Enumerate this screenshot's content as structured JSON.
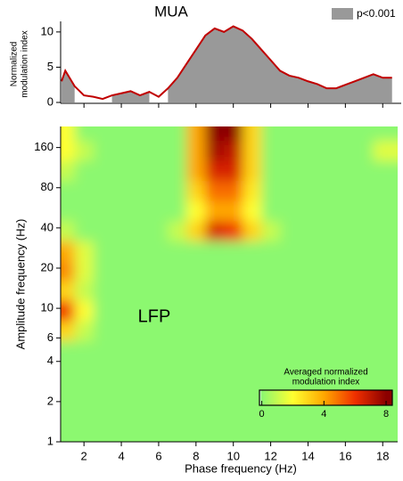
{
  "chart_data": [
    {
      "type": "area_line",
      "title": "MUA",
      "ylabel": [
        "Normalized",
        "modulation index"
      ],
      "x": [
        0.8,
        1,
        1.5,
        2,
        2.5,
        3,
        3.5,
        4,
        4.5,
        5,
        5.5,
        6,
        6.5,
        7,
        7.5,
        8,
        8.5,
        9,
        9.5,
        10,
        10.5,
        11,
        11.5,
        12,
        12.5,
        13,
        13.5,
        14,
        14.5,
        15,
        15.5,
        16,
        16.5,
        17,
        17.5,
        18,
        18.5
      ],
      "series": [
        {
          "name": "p<0.001",
          "color": "#999999",
          "values": [
            3.0,
            4.5,
            2.3,
            null,
            null,
            null,
            1.0,
            1.3,
            1.6,
            1.0,
            1.5,
            null,
            2.0,
            3.5,
            5.5,
            7.5,
            9.5,
            10.5,
            10.0,
            10.8,
            10.2,
            9.0,
            7.5,
            6.0,
            4.5,
            3.8,
            3.5,
            3.0,
            2.6,
            2.0,
            2.0,
            2.5,
            3.0,
            3.5,
            4.0,
            3.5,
            3.5
          ]
        },
        {
          "color": "#c00000",
          "values": [
            3.0,
            4.5,
            2.3,
            1.0,
            0.8,
            0.5,
            1.0,
            1.3,
            1.6,
            1.0,
            1.5,
            0.8,
            2.0,
            3.5,
            5.5,
            7.5,
            9.5,
            10.5,
            10.0,
            10.8,
            10.2,
            9.0,
            7.5,
            6.0,
            4.5,
            3.8,
            3.5,
            3.0,
            2.6,
            2.0,
            2.0,
            2.5,
            3.0,
            3.5,
            4.0,
            3.5,
            3.5
          ]
        }
      ],
      "xlim": [
        0.75,
        18.8
      ],
      "xticks": [
        2,
        4,
        6,
        8,
        10,
        12,
        14,
        16,
        18
      ],
      "ylim": [
        0,
        11.5
      ],
      "yticks": [
        0,
        5,
        10
      ],
      "legend": "upper right"
    },
    {
      "type": "heatmap",
      "annotation": "LFP",
      "xlabel": "Phase frequency (Hz)",
      "ylabel": "Amplitude frequency (Hz)",
      "x": [
        1,
        2,
        3,
        4,
        5,
        6,
        7,
        8,
        9,
        10,
        11,
        12,
        13,
        14,
        15,
        16,
        17,
        18
      ],
      "y": [
        1.2,
        1.7,
        2.4,
        3.4,
        4.8,
        6.8,
        9.6,
        13.6,
        19,
        27,
        38,
        54,
        76,
        108,
        152,
        215
      ],
      "z": [
        [
          0,
          0,
          0,
          0,
          0,
          0,
          0,
          0,
          0,
          0,
          0,
          0,
          0,
          0,
          0,
          0,
          0,
          0
        ],
        [
          0,
          0,
          0,
          0,
          0,
          0,
          0,
          0,
          0,
          0,
          0,
          0,
          0,
          0,
          0,
          0,
          0,
          0
        ],
        [
          0,
          0,
          0,
          0,
          0,
          0,
          0,
          0,
          0,
          0,
          0,
          0,
          0,
          0,
          0,
          0,
          0,
          0
        ],
        [
          0,
          0,
          0,
          0,
          0,
          0,
          0,
          0,
          0,
          0,
          0,
          0,
          0,
          0,
          0,
          0,
          0,
          0
        ],
        [
          0,
          0,
          0,
          0,
          0,
          0,
          0,
          0,
          0,
          0,
          0,
          0,
          0,
          0,
          0,
          0,
          0,
          0
        ],
        [
          3,
          1,
          0,
          0,
          0,
          0,
          0,
          0,
          0,
          0,
          0,
          0,
          0,
          0,
          0,
          0,
          0,
          0
        ],
        [
          6,
          2,
          0,
          0,
          0,
          0,
          0,
          0,
          0,
          0,
          0,
          0,
          0,
          0,
          0,
          0,
          0,
          0
        ],
        [
          3,
          1,
          0,
          0,
          0,
          0,
          0,
          0,
          0,
          0,
          0,
          0,
          0,
          0,
          0,
          0,
          0,
          0
        ],
        [
          4.5,
          1.5,
          0,
          0,
          0,
          0,
          0,
          0,
          0,
          0,
          0,
          0,
          0,
          0,
          0,
          0,
          0,
          0
        ],
        [
          4,
          1.5,
          0,
          0,
          0,
          0,
          0,
          0,
          0,
          0,
          0,
          0,
          0,
          0,
          0,
          0,
          0,
          0
        ],
        [
          1,
          0,
          0,
          0,
          0,
          0,
          1,
          3,
          6.5,
          6,
          3,
          1,
          0,
          0,
          0,
          0,
          0,
          0
        ],
        [
          0,
          0,
          0,
          0,
          0,
          0,
          0,
          2,
          4,
          4,
          2,
          0,
          0,
          0,
          0,
          0,
          0,
          0
        ],
        [
          0,
          0,
          0,
          0,
          0,
          0,
          0,
          3,
          5,
          5,
          2.5,
          0,
          0,
          0,
          0,
          0,
          0,
          0
        ],
        [
          1,
          0,
          0,
          0,
          0,
          0,
          0,
          4,
          6.5,
          6.5,
          3,
          0,
          0,
          0,
          0,
          0,
          0,
          0
        ],
        [
          2,
          1,
          0,
          0,
          0,
          0,
          0,
          4,
          7.5,
          7,
          3,
          0,
          0,
          0,
          0,
          0,
          0,
          1.5
        ],
        [
          2,
          0,
          0,
          0,
          0,
          0,
          0,
          4,
          8,
          8,
          3,
          0,
          0,
          0,
          0,
          0,
          0,
          0
        ]
      ],
      "xlim": [
        0.75,
        18.8
      ],
      "xticks": [
        2,
        4,
        6,
        8,
        10,
        12,
        14,
        16,
        18
      ],
      "ylim": [
        1,
        230
      ],
      "yscale": "log",
      "yticks": [
        1,
        2,
        4,
        6,
        10,
        20,
        40,
        80,
        160
      ],
      "colorbar": {
        "title": [
          "Averaged normalized",
          "modulation index"
        ],
        "lim": [
          -0.15,
          8.4
        ],
        "ticks": [
          0,
          4,
          8
        ],
        "colors": [
          [
            -0.15,
            "#e8fff4"
          ],
          [
            0,
            "#8cf870"
          ],
          [
            2,
            "#ffff30"
          ],
          [
            4,
            "#ffa800"
          ],
          [
            6,
            "#f03000"
          ],
          [
            8,
            "#8b0000"
          ]
        ]
      }
    }
  ]
}
